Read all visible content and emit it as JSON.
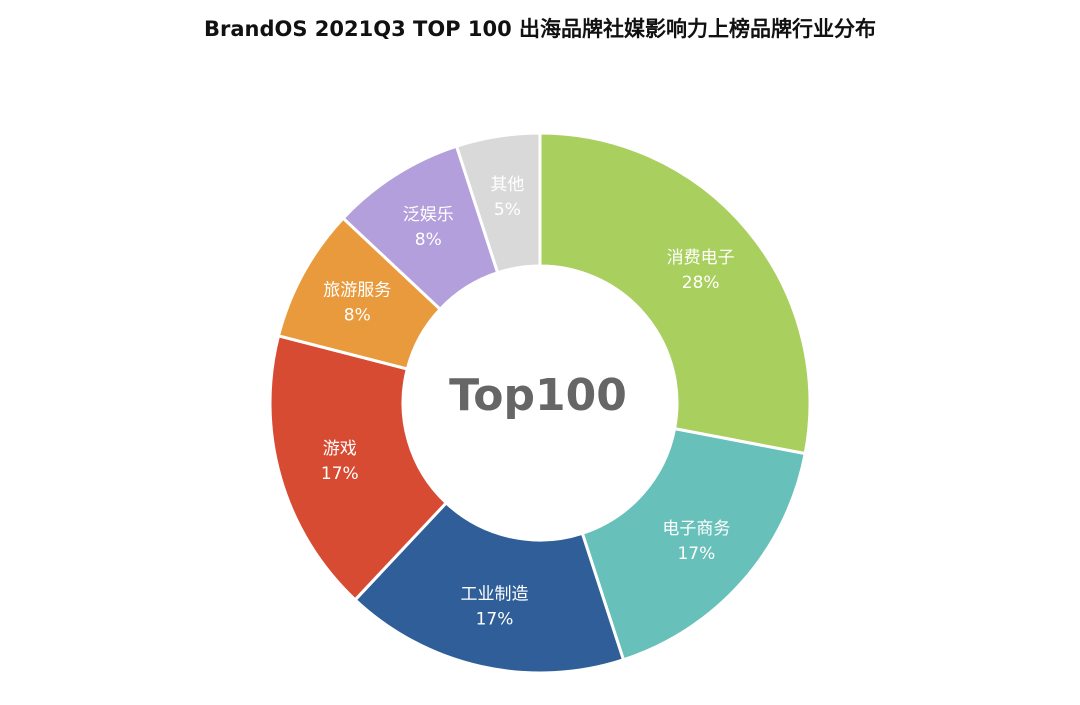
{
  "chart_data": {
    "type": "donut",
    "title": "BrandOS 2021Q3 TOP 100 出海品牌社媒影响力上榜品牌行业分布",
    "center_label": "Top100",
    "categories": [
      "消费电子",
      "电子商务",
      "工业制造",
      "游戏",
      "旅游服务",
      "泛娱乐",
      "其他"
    ],
    "values": [
      28,
      17,
      17,
      17,
      8,
      8,
      5
    ],
    "value_labels": [
      "28%",
      "17%",
      "17%",
      "17%",
      "8%",
      "8%",
      "5%"
    ],
    "colors": [
      "#a9cf5f",
      "#67c0b9",
      "#2f5e98",
      "#d84b33",
      "#e89a3c",
      "#b39fdb",
      "#d9d9d9"
    ]
  }
}
